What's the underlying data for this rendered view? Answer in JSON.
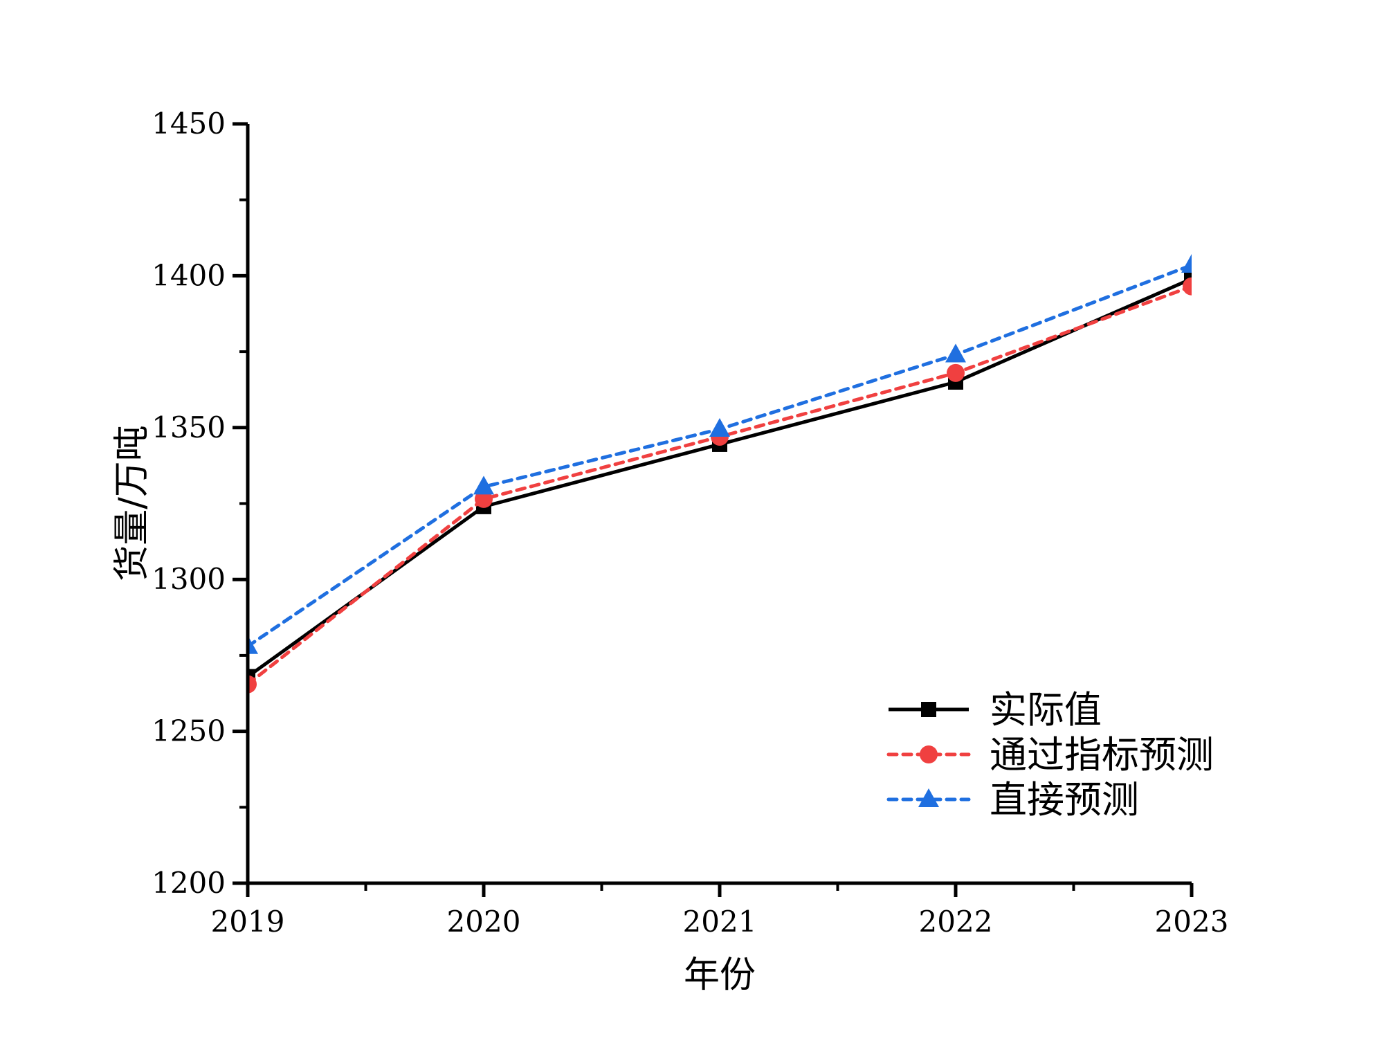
{
  "chart_data": {
    "type": "line",
    "title": "",
    "xlabel": "年份",
    "ylabel": "货量/万吨",
    "x": [
      2019,
      2020,
      2021,
      2022,
      2023
    ],
    "xticks": [
      "2019",
      "2020",
      "2021",
      "2022",
      "2023"
    ],
    "yticks": [
      "1200",
      "1250",
      "1300",
      "1350",
      "1400",
      "1450"
    ],
    "xlim": [
      2019,
      2023
    ],
    "ylim": [
      1200,
      1450
    ],
    "grid": false,
    "legend_position": "bottom-right",
    "series": [
      {
        "name": "实际值",
        "values": [
          1268,
          1324,
          1344.5,
          1365,
          1399
        ],
        "color": "#000000",
        "marker": "square",
        "line": "solid"
      },
      {
        "name": "通过指标预测",
        "values": [
          1265.5,
          1326.5,
          1347,
          1368,
          1396.5
        ],
        "color": "#f04040",
        "marker": "circle",
        "line": "dashed"
      },
      {
        "name": "直接预测",
        "values": [
          1278,
          1330.5,
          1349.5,
          1374,
          1403.5
        ],
        "color": "#1f6fe0",
        "marker": "triangle",
        "line": "dashed"
      }
    ]
  }
}
